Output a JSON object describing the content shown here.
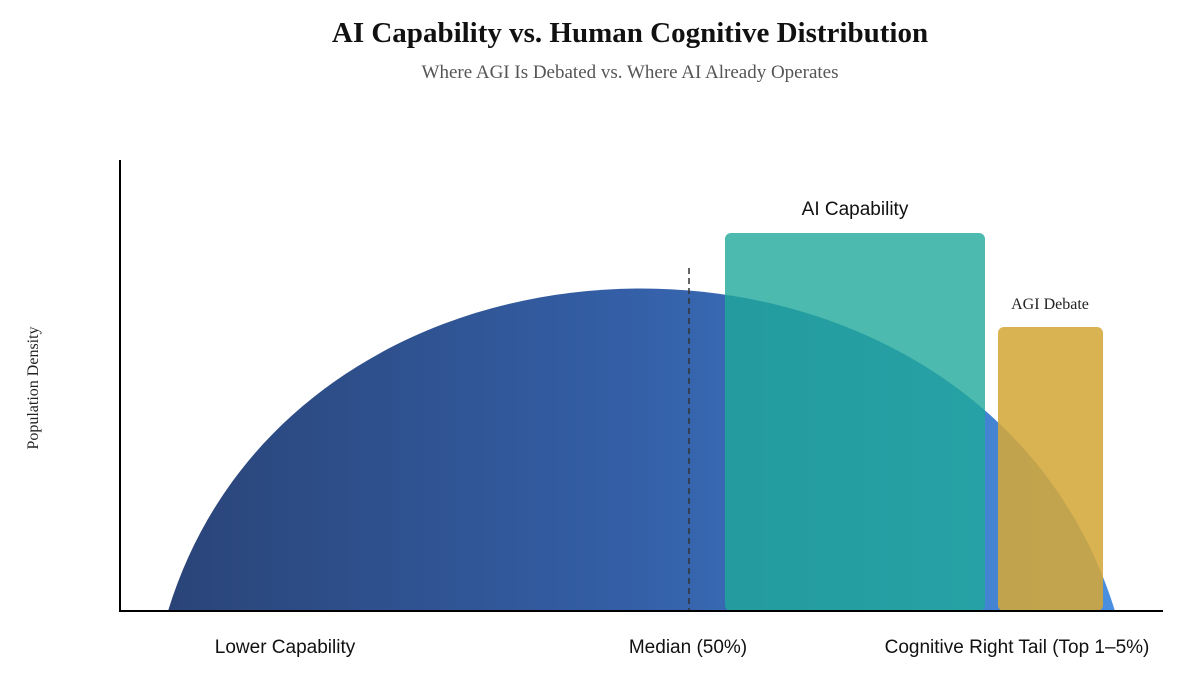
{
  "header": {
    "title": "AI Capability vs. Human Cognitive Distribution",
    "subtitle": "Where AGI Is Debated vs. Where AI Already Operates"
  },
  "axes": {
    "y_label": "Population Density",
    "x_labels": [
      "Lower Capability",
      "Median (50%)",
      "Cognitive Right Tail (Top 1–5%)"
    ]
  },
  "regions": {
    "ai_capability": "AI Capability",
    "agi_debate": "AGI Debate"
  }
}
